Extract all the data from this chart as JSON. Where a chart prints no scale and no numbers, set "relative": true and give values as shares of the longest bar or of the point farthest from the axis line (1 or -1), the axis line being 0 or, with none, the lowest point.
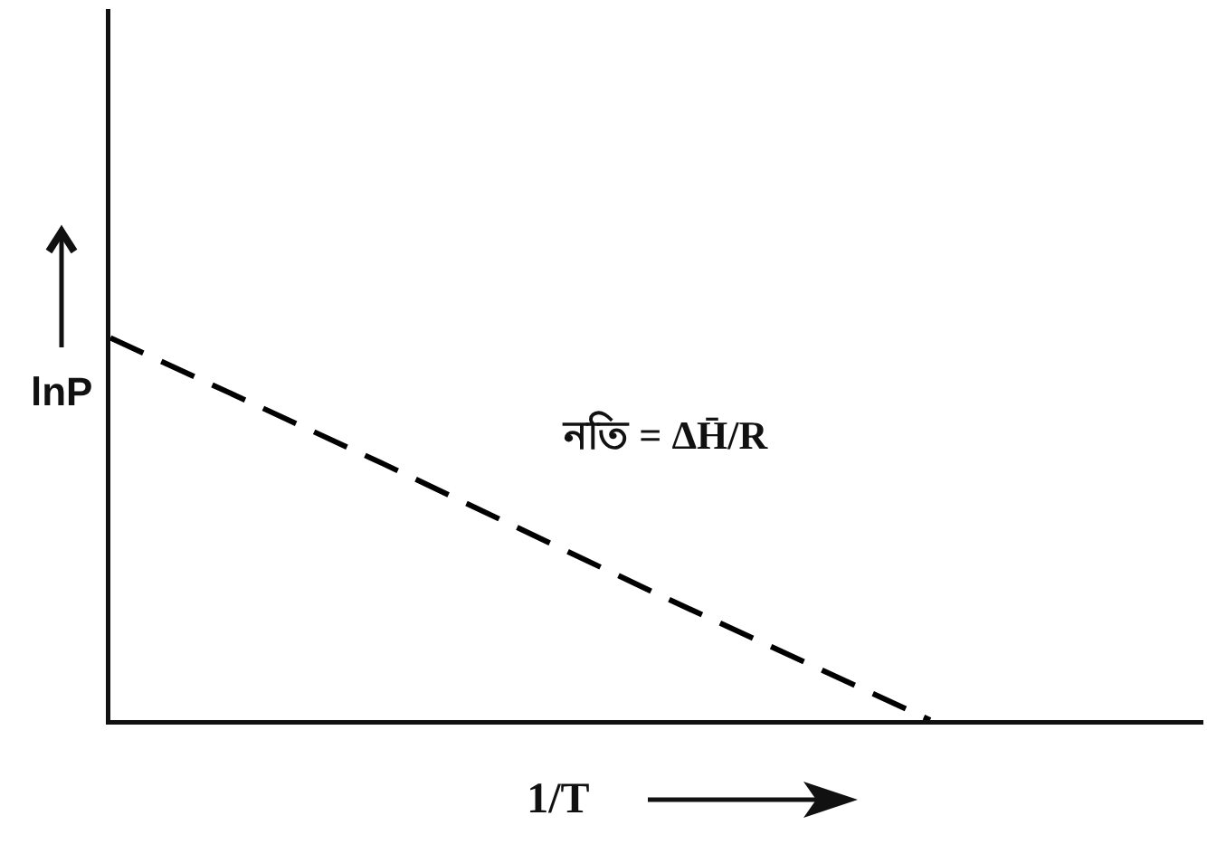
{
  "chart_data": {
    "type": "line",
    "xlabel": "1/T",
    "ylabel": "lnP",
    "annotations": [
      "নতি = ΔH̄/R"
    ],
    "categories": [
      null,
      null,
      null,
      null,
      null
    ],
    "series": [
      {
        "color": "#000000",
        "values": [
          1,
          0.67,
          0.33,
          0,
          null
        ]
      }
    ],
    "relative": true,
    "line_style": "dashed"
  }
}
